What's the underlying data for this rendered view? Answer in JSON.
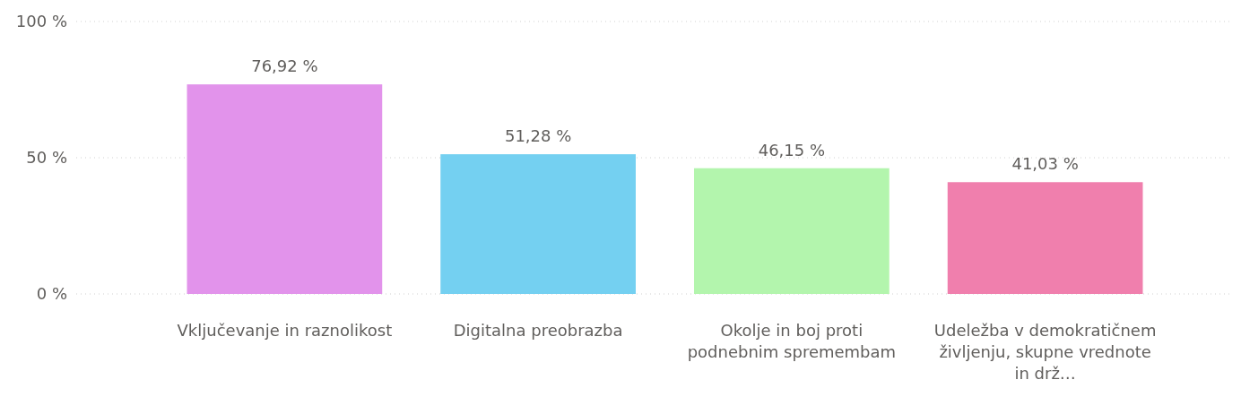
{
  "chart_data": {
    "type": "bar",
    "categories": [
      "Vključevanje in raznolikost",
      "Digitalna preobrazba",
      "Okolje in boj proti podnebnim spremembam",
      "Udeležba v demokratičnem življenju, skupne vrednote in drž…"
    ],
    "values": [
      76.92,
      51.28,
      46.15,
      41.03
    ],
    "colors": [
      "#e293eb",
      "#74d0f1",
      "#b3f5ad",
      "#f07fad"
    ],
    "value_labels": [
      "76,92 %",
      "51,28 %",
      "46,15 %",
      "41,03 %"
    ],
    "ylim": [
      0,
      100
    ],
    "yticks": [
      {
        "value": 0,
        "label": "0 %"
      },
      {
        "value": 50,
        "label": "50 %"
      },
      {
        "value": 100,
        "label": "100 %"
      }
    ],
    "grid": "y"
  }
}
